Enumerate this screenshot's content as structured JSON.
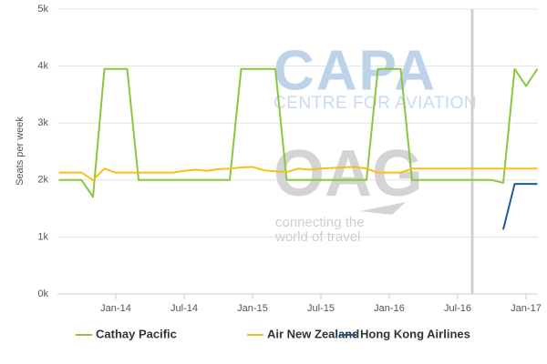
{
  "chart_data": {
    "type": "line",
    "y_label": "Seats per week",
    "watermarks": [
      "CAPA",
      "CENTRE FOR AVIATION",
      "OAG",
      "connecting the",
      "world of travel"
    ],
    "x": [
      null,
      null,
      null,
      null,
      null,
      "Jan-14",
      null,
      null,
      null,
      null,
      null,
      "Jul-14",
      null,
      null,
      null,
      null,
      null,
      "Jan-15",
      null,
      null,
      null,
      null,
      null,
      "Jul-15",
      null,
      null,
      null,
      null,
      null,
      "Jan-16",
      null,
      null,
      null,
      null,
      null,
      "Jul-16",
      null,
      null,
      null,
      null,
      null,
      "Jan-17",
      null
    ],
    "ylim": [
      0,
      5000
    ],
    "yticks": [
      {
        "value": 0,
        "label": "0k"
      },
      {
        "value": 1000,
        "label": "1k"
      },
      {
        "value": 2000,
        "label": "2k"
      },
      {
        "value": 3000,
        "label": "3k"
      },
      {
        "value": 4000,
        "label": "4k"
      },
      {
        "value": 5000,
        "label": "5k"
      }
    ],
    "grid": true,
    "legend": "bottom",
    "series": [
      {
        "name": "Cathay Pacific",
        "color": "#8cc63f",
        "values": [
          2000,
          2000,
          2000,
          1700,
          3950,
          3950,
          3950,
          2000,
          2000,
          2000,
          2000,
          2000,
          2000,
          2000,
          2000,
          2000,
          3950,
          3950,
          3950,
          3950,
          2000,
          2000,
          2000,
          2000,
          2000,
          2000,
          2000,
          2000,
          3950,
          3950,
          3950,
          2000,
          2000,
          2000,
          2000,
          2000,
          2000,
          2000,
          2000,
          1950,
          3950,
          3650,
          3950
        ]
      },
      {
        "name": "Air New Zealand",
        "color": "#fbbd18",
        "values": [
          2130,
          2130,
          2130,
          2000,
          2200,
          2130,
          2130,
          2130,
          2130,
          2130,
          2130,
          2160,
          2180,
          2160,
          2190,
          2200,
          2220,
          2230,
          2170,
          2150,
          2140,
          2200,
          2180,
          2200,
          2210,
          2220,
          2230,
          2200,
          2130,
          2130,
          2130,
          2200,
          2200,
          2200,
          2200,
          2200,
          2200,
          2200,
          2200,
          2200,
          2200,
          2200,
          2200
        ]
      },
      {
        "name": "Hong Kong Airlines",
        "color": "#1c5aa0",
        "values": [
          null,
          null,
          null,
          null,
          null,
          null,
          null,
          null,
          null,
          null,
          null,
          null,
          null,
          null,
          null,
          null,
          null,
          null,
          null,
          null,
          null,
          null,
          null,
          null,
          null,
          null,
          null,
          null,
          null,
          null,
          null,
          null,
          null,
          null,
          null,
          null,
          null,
          null,
          null,
          1130,
          1930,
          1930,
          1930
        ]
      }
    ]
  }
}
